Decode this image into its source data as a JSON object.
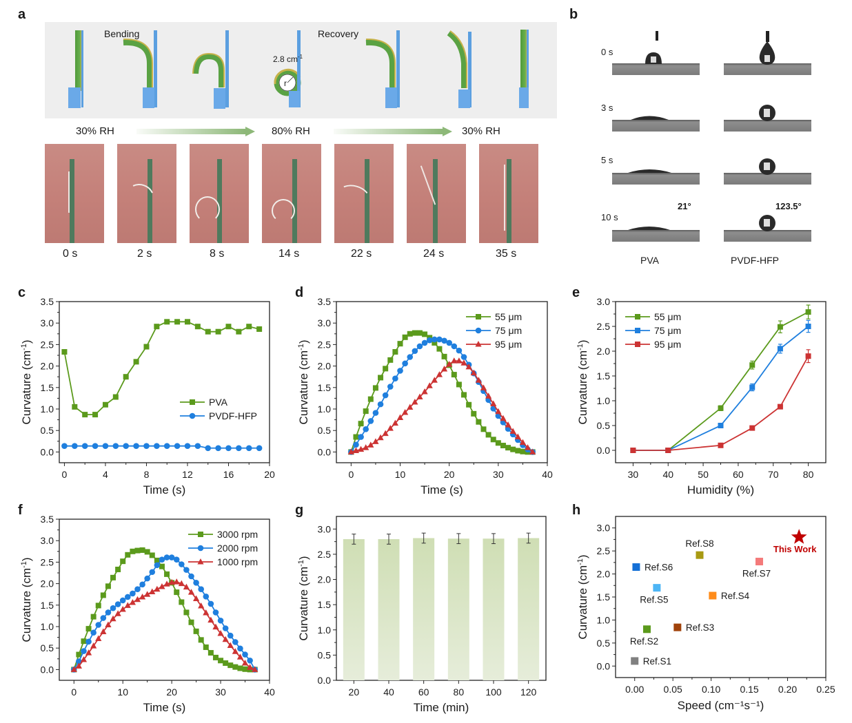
{
  "figure": {
    "panels": {
      "a": {
        "label": "a",
        "schematic": {
          "bending_label": "Bending",
          "recovery_label": "Recovery",
          "curvature_annotation": "2.8 cm",
          "curvature_annotation_sup": "-1",
          "radius_label": "r"
        },
        "humidity_labels": [
          "30% RH",
          "80% RH",
          "30% RH"
        ],
        "photo_times": [
          "0 s",
          "2 s",
          "8 s",
          "14 s",
          "22 s",
          "24 s",
          "35 s"
        ]
      },
      "b": {
        "label": "b",
        "row_times": [
          "0 s",
          "3 s",
          "5 s",
          "10 s"
        ],
        "columns": [
          "PVA",
          "PVDF-HFP"
        ],
        "contact_angles": {
          "PVA": "21°",
          "PVDF-HFP": "123.5°"
        }
      },
      "c": {
        "label": "c"
      },
      "d": {
        "label": "d"
      },
      "e": {
        "label": "e"
      },
      "f": {
        "label": "f"
      },
      "g": {
        "label": "g"
      },
      "h": {
        "label": "h"
      }
    },
    "colors": {
      "green": "#5b9a1c",
      "blue": "#1f7fde",
      "red": "#cc3333",
      "bar_green_top": "#cfdeb4",
      "bar_green_bottom": "#e6edda",
      "star": "#c00000"
    }
  },
  "chart_data": [
    {
      "id": "c",
      "type": "line",
      "xlabel": "Time (s)",
      "ylabel": "Curvature (cm⁻¹)",
      "xlim": [
        -0.5,
        20
      ],
      "ylim": [
        -0.25,
        3.5
      ],
      "xticks": [
        0,
        4,
        8,
        12,
        16,
        20
      ],
      "yticks": [
        0.0,
        0.5,
        1.0,
        1.5,
        2.0,
        2.5,
        3.0,
        3.5
      ],
      "legend_position": "center-right",
      "x": [
        0,
        1,
        2,
        3,
        4,
        5,
        6,
        7,
        8,
        9,
        10,
        11,
        12,
        13,
        14,
        15,
        16,
        17,
        18,
        19
      ],
      "series": [
        {
          "name": "PVA",
          "marker": "square",
          "color": "#5b9a1c",
          "values": [
            2.33,
            1.05,
            0.87,
            0.87,
            1.1,
            1.28,
            1.75,
            2.1,
            2.45,
            2.92,
            3.03,
            3.03,
            3.03,
            2.92,
            2.8,
            2.8,
            2.92,
            2.8,
            2.92,
            2.86
          ]
        },
        {
          "name": "PVDF-HFP",
          "marker": "circle",
          "color": "#1f7fde",
          "values": [
            0.14,
            0.14,
            0.14,
            0.14,
            0.14,
            0.14,
            0.14,
            0.14,
            0.14,
            0.14,
            0.14,
            0.14,
            0.14,
            0.14,
            0.09,
            0.09,
            0.09,
            0.09,
            0.09,
            0.09
          ]
        }
      ]
    },
    {
      "id": "d",
      "type": "line",
      "xlabel": "Time (s)",
      "ylabel": "Curvature (cm⁻¹)",
      "xlim": [
        -3,
        40
      ],
      "ylim": [
        -0.25,
        3.5
      ],
      "xticks": [
        0,
        10,
        20,
        30,
        40
      ],
      "yticks": [
        0.0,
        0.5,
        1.0,
        1.5,
        2.0,
        2.5,
        3.0,
        3.5
      ],
      "legend_position": "top-right",
      "x": [
        0,
        1,
        2,
        3,
        4,
        5,
        6,
        7,
        8,
        9,
        10,
        11,
        12,
        13,
        14,
        15,
        16,
        17,
        18,
        19,
        20,
        21,
        22,
        23,
        24,
        25,
        26,
        27,
        28,
        29,
        30,
        31,
        32,
        33,
        34,
        35,
        36,
        37
      ],
      "series": [
        {
          "name": "55 μm",
          "marker": "square",
          "color": "#5b9a1c",
          "values": [
            0,
            0.35,
            0.66,
            0.95,
            1.23,
            1.49,
            1.73,
            1.94,
            2.14,
            2.33,
            2.52,
            2.67,
            2.75,
            2.77,
            2.77,
            2.74,
            2.66,
            2.54,
            2.4,
            2.22,
            2.02,
            1.8,
            1.57,
            1.33,
            1.1,
            0.89,
            0.7,
            0.53,
            0.4,
            0.29,
            0.21,
            0.15,
            0.1,
            0.06,
            0.03,
            0.01,
            0.0,
            0.0
          ]
        },
        {
          "name": "75 μm",
          "marker": "circle",
          "color": "#1f7fde",
          "values": [
            0,
            0.17,
            0.35,
            0.53,
            0.72,
            0.91,
            1.11,
            1.32,
            1.52,
            1.71,
            1.89,
            2.06,
            2.21,
            2.35,
            2.46,
            2.54,
            2.6,
            2.62,
            2.62,
            2.59,
            2.54,
            2.46,
            2.36,
            2.21,
            2.03,
            1.83,
            1.63,
            1.42,
            1.21,
            1.01,
            0.84,
            0.69,
            0.54,
            0.41,
            0.28,
            0.16,
            0.06,
            0.0
          ]
        },
        {
          "name": "95 μm",
          "marker": "triangle",
          "color": "#cc3333",
          "values": [
            0,
            0.03,
            0.06,
            0.1,
            0.16,
            0.24,
            0.33,
            0.43,
            0.55,
            0.67,
            0.8,
            0.92,
            1.04,
            1.16,
            1.28,
            1.4,
            1.54,
            1.67,
            1.8,
            1.93,
            2.04,
            2.12,
            2.12,
            2.07,
            1.98,
            1.84,
            1.67,
            1.49,
            1.3,
            1.12,
            0.94,
            0.78,
            0.63,
            0.48,
            0.35,
            0.22,
            0.1,
            0.0
          ]
        }
      ]
    },
    {
      "id": "e",
      "type": "line",
      "xlabel": "Humidity (%)",
      "ylabel": "Curvature (cm⁻¹)",
      "xlim": [
        25,
        85
      ],
      "ylim": [
        -0.25,
        3.0
      ],
      "xticks": [
        30,
        40,
        50,
        60,
        70,
        80
      ],
      "yticks": [
        0.0,
        0.5,
        1.0,
        1.5,
        2.0,
        2.5,
        3.0
      ],
      "legend_position": "top-left",
      "x": [
        30,
        40,
        55,
        64,
        72,
        80
      ],
      "series": [
        {
          "name": "55 μm",
          "marker": "square",
          "color": "#5b9a1c",
          "values": [
            0,
            0,
            0.85,
            1.72,
            2.49,
            2.79
          ],
          "errors": [
            0,
            0,
            0.05,
            0.08,
            0.12,
            0.14
          ]
        },
        {
          "name": "75 μm",
          "marker": "square",
          "color": "#1f7fde",
          "values": [
            0,
            0,
            0.5,
            1.27,
            2.05,
            2.5
          ],
          "errors": [
            0,
            0,
            0.03,
            0.07,
            0.09,
            0.12
          ]
        },
        {
          "name": "95 μm",
          "marker": "square",
          "color": "#cc3333",
          "values": [
            0,
            0,
            0.1,
            0.45,
            0.88,
            1.9
          ],
          "errors": [
            0,
            0,
            0.02,
            0.03,
            0.03,
            0.13
          ]
        }
      ]
    },
    {
      "id": "f",
      "type": "line",
      "xlabel": "Time (s)",
      "ylabel": "Curvature (cm⁻¹)",
      "xlim": [
        -3,
        40
      ],
      "ylim": [
        -0.25,
        3.5
      ],
      "xticks": [
        0,
        10,
        20,
        30,
        40
      ],
      "yticks": [
        0.0,
        0.5,
        1.0,
        1.5,
        2.0,
        2.5,
        3.0,
        3.5
      ],
      "legend_position": "top-right",
      "x": [
        0,
        1,
        2,
        3,
        4,
        5,
        6,
        7,
        8,
        9,
        10,
        11,
        12,
        13,
        14,
        15,
        16,
        17,
        18,
        19,
        20,
        21,
        22,
        23,
        24,
        25,
        26,
        27,
        28,
        29,
        30,
        31,
        32,
        33,
        34,
        35,
        36,
        37
      ],
      "series": [
        {
          "name": "3000 rpm",
          "marker": "square",
          "color": "#5b9a1c",
          "values": [
            0,
            0.35,
            0.66,
            0.95,
            1.23,
            1.49,
            1.73,
            1.94,
            2.14,
            2.33,
            2.52,
            2.67,
            2.75,
            2.77,
            2.78,
            2.74,
            2.66,
            2.54,
            2.4,
            2.22,
            2.02,
            1.8,
            1.57,
            1.33,
            1.1,
            0.89,
            0.69,
            0.52,
            0.39,
            0.28,
            0.21,
            0.15,
            0.1,
            0.06,
            0.03,
            0.01,
            0.0,
            0.0
          ]
        },
        {
          "name": "2000 rpm",
          "marker": "circle",
          "color": "#1f7fde",
          "values": [
            0,
            0.19,
            0.43,
            0.65,
            0.86,
            1.04,
            1.2,
            1.33,
            1.43,
            1.52,
            1.61,
            1.69,
            1.77,
            1.87,
            1.98,
            2.12,
            2.27,
            2.43,
            2.56,
            2.61,
            2.61,
            2.56,
            2.45,
            2.32,
            2.17,
            2.02,
            1.87,
            1.7,
            1.53,
            1.33,
            1.14,
            0.96,
            0.79,
            0.64,
            0.49,
            0.35,
            0.21,
            0.0
          ]
        },
        {
          "name": "1000 rpm",
          "marker": "triangle",
          "color": "#cc3333",
          "values": [
            0,
            0.08,
            0.23,
            0.39,
            0.55,
            0.72,
            0.88,
            1.04,
            1.18,
            1.3,
            1.4,
            1.49,
            1.56,
            1.63,
            1.69,
            1.75,
            1.81,
            1.87,
            1.93,
            1.99,
            2.03,
            2.04,
            2.0,
            1.92,
            1.8,
            1.65,
            1.48,
            1.32,
            1.15,
            0.99,
            0.84,
            0.7,
            0.56,
            0.42,
            0.29,
            0.15,
            0.05,
            0.0
          ]
        }
      ]
    },
    {
      "id": "g",
      "type": "bar",
      "xlabel": "Time (min)",
      "ylabel": "Curvature (cm⁻¹)",
      "ylim": [
        0,
        3.25
      ],
      "yticks": [
        0.0,
        0.5,
        1.0,
        1.5,
        2.0,
        2.5,
        3.0
      ],
      "categories": [
        "20",
        "40",
        "60",
        "80",
        "100",
        "120"
      ],
      "values": [
        2.8,
        2.8,
        2.82,
        2.81,
        2.81,
        2.82
      ],
      "errors": [
        0.1,
        0.1,
        0.1,
        0.1,
        0.1,
        0.1
      ]
    },
    {
      "id": "h",
      "type": "scatter",
      "xlabel": "Speed (cm⁻¹s⁻¹)",
      "ylabel": "Curvature (cm⁻¹)",
      "xlim": [
        -0.025,
        0.25
      ],
      "ylim": [
        -0.25,
        3.25
      ],
      "xticks": [
        "0.00",
        "0.05",
        "0.10",
        "0.15",
        "0.20",
        "0.25"
      ],
      "yticks": [
        "0.0",
        "0.5",
        "1.0",
        "1.5",
        "2.0",
        "2.5",
        "3.0"
      ],
      "points": [
        {
          "label": "Ref.S1",
          "x": 0.0,
          "y": 0.11,
          "color": "#808080",
          "label_pos": "right"
        },
        {
          "label": "Ref.S2",
          "x": 0.016,
          "y": 0.8,
          "color": "#5b9a1c",
          "label_pos": "below"
        },
        {
          "label": "Ref.S3",
          "x": 0.056,
          "y": 0.84,
          "color": "#a0420a",
          "label_pos": "right"
        },
        {
          "label": "Ref.S4",
          "x": 0.102,
          "y": 1.53,
          "color": "#ff8c1a",
          "label_pos": "right"
        },
        {
          "label": "Ref.S5",
          "x": 0.029,
          "y": 1.7,
          "color": "#4db5f5",
          "label_pos": "below"
        },
        {
          "label": "Ref.S6",
          "x": 0.002,
          "y": 2.15,
          "color": "#1570d6",
          "label_pos": "right"
        },
        {
          "label": "Ref.S7",
          "x": 0.163,
          "y": 2.27,
          "color": "#f47a7a",
          "label_pos": "below"
        },
        {
          "label": "Ref.S8",
          "x": 0.085,
          "y": 2.41,
          "color": "#a89a12",
          "label_pos": "above"
        },
        {
          "label": "This Work",
          "x": 0.215,
          "y": 2.8,
          "color": "#c00000",
          "label_pos": "below",
          "marker": "star"
        }
      ]
    }
  ]
}
